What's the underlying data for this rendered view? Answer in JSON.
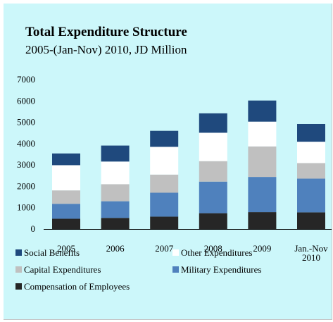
{
  "chart_data": {
    "type": "bar",
    "stacked": true,
    "title": "Total Expenditure Structure",
    "subtitle": "2005-(Jan-Nov) 2010, JD Million",
    "categories": [
      "2005",
      "2006",
      "2007",
      "2008",
      "2009",
      "Jan.-Nov\n2010"
    ],
    "ylim": [
      0,
      7000
    ],
    "yticks": [
      0,
      1000,
      2000,
      3000,
      4000,
      5000,
      6000,
      7000
    ],
    "legend_position": "bottom",
    "series": [
      {
        "name": "Compensation of Employees",
        "color": "#262626",
        "values": [
          480,
          520,
          580,
          740,
          790,
          780
        ]
      },
      {
        "name": "Military Expenditures",
        "color": "#4f81bd",
        "values": [
          700,
          780,
          1120,
          1480,
          1650,
          1580
        ]
      },
      {
        "name": "Capital Expenditures",
        "color": "#c0c0c0",
        "values": [
          630,
          800,
          850,
          960,
          1430,
          730
        ]
      },
      {
        "name": "Other Expenditures",
        "color": "#ffffff",
        "values": [
          1180,
          1060,
          1300,
          1330,
          1160,
          1000
        ]
      },
      {
        "name": "Social Benefits",
        "color": "#1f497d",
        "values": [
          550,
          750,
          750,
          910,
          990,
          830
        ]
      }
    ]
  }
}
